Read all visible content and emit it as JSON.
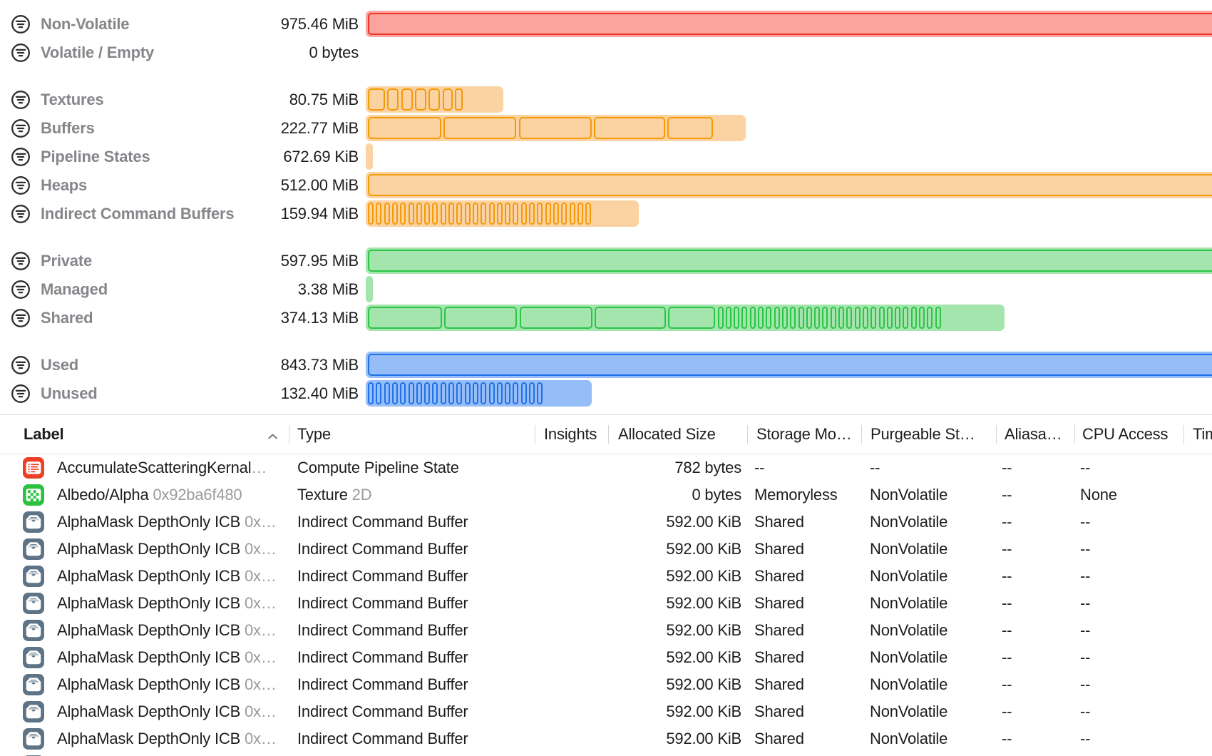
{
  "colors": {
    "red": {
      "stroke": "#ee342b",
      "fill": "#fba39d"
    },
    "orange": {
      "stroke": "#f59a06",
      "fill": "#fbd2a2"
    },
    "green": {
      "stroke": "#2cc447",
      "fill": "#a4e5ae"
    },
    "blue": {
      "stroke": "#1f70e9",
      "fill": "#95bdf8"
    },
    "label_gray": "#86868b",
    "text_primary": "#1d1d1f",
    "text_secondary": "#9b9ba0",
    "icon_red_bg": "#ee3e26",
    "icon_green_bg": "#2ac23f",
    "icon_slate_bg": "#5e7486"
  },
  "memory_overview": {
    "unit_note": "sizes as displayed",
    "groups": [
      {
        "rows": [
          {
            "id": "non-volatile",
            "label": "Non-Volatile",
            "value": "975.46 MiB",
            "color": "red",
            "track_w": 2336,
            "segments": [
              2330
            ]
          },
          {
            "id": "volatile-empty",
            "label": "Volatile / Empty",
            "value": "0 bytes",
            "color": "none",
            "track_w": 0,
            "segments": []
          }
        ]
      },
      {
        "rows": [
          {
            "id": "textures",
            "label": "Textures",
            "value": "80.75 MiB",
            "color": "orange",
            "track_w": 193,
            "segments": [
              24,
              16,
              16,
              16,
              16,
              14,
              11
            ]
          },
          {
            "id": "buffers",
            "label": "Buffers",
            "value": "222.77 MiB",
            "color": "orange",
            "track_w": 533,
            "segments": [
              103,
              102,
              102,
              100,
              64
            ]
          },
          {
            "id": "pipeline-states",
            "label": "Pipeline States",
            "value": "672.69 KiB",
            "color": "orange",
            "track_w": 10,
            "segments": []
          },
          {
            "id": "heaps",
            "label": "Heaps",
            "value": "512.00 MiB",
            "color": "orange",
            "track_w": 1226,
            "segments": [
              1220
            ]
          },
          {
            "id": "indirect-command-buffers",
            "label": "Indirect Command Buffers",
            "value": "159.94 MiB",
            "color": "orange",
            "track_w": 383,
            "segments": [
              8,
              8,
              8,
              8,
              8,
              8,
              8,
              8,
              8,
              8,
              8,
              8,
              8,
              8,
              8,
              8,
              8,
              8,
              8,
              8,
              8,
              8,
              8,
              8,
              8,
              8,
              8,
              8
            ]
          }
        ]
      },
      {
        "rows": [
          {
            "id": "private",
            "label": "Private",
            "value": "597.95 MiB",
            "color": "green",
            "track_w": 1432,
            "segments": [
              1426
            ]
          },
          {
            "id": "managed",
            "label": "Managed",
            "value": "3.38 MiB",
            "color": "green",
            "track_w": 10,
            "segments": []
          },
          {
            "id": "shared",
            "label": "Shared",
            "value": "374.13 MiB",
            "color": "green",
            "track_w": 896,
            "segments": [
              104,
              102,
              102,
              100,
              66,
              8,
              8,
              8,
              8,
              8,
              8,
              8,
              8,
              8,
              8,
              8,
              8,
              8,
              8,
              8,
              8,
              8,
              8,
              8,
              8,
              8,
              8,
              8,
              8,
              8,
              8,
              8,
              8
            ]
          }
        ]
      },
      {
        "rows": [
          {
            "id": "used",
            "label": "Used",
            "value": "843.73 MiB",
            "color": "blue",
            "track_w": 2021,
            "segments": [
              2015
            ]
          },
          {
            "id": "unused",
            "label": "Unused",
            "value": "132.40 MiB",
            "color": "blue",
            "track_w": 317,
            "segments": [
              8,
              8,
              8,
              8,
              8,
              8,
              8,
              8,
              8,
              8,
              8,
              8,
              8,
              8,
              8,
              8,
              8,
              8,
              8,
              8,
              8,
              8
            ]
          }
        ]
      }
    ]
  },
  "table": {
    "columns": [
      {
        "id": "label",
        "label": "Label",
        "sorted": true
      },
      {
        "id": "type",
        "label": "Type"
      },
      {
        "id": "insights",
        "label": "Insights"
      },
      {
        "id": "allocated-size",
        "label": "Allocated Size"
      },
      {
        "id": "storage-mode",
        "label": "Storage Mo…"
      },
      {
        "id": "purgeable-state",
        "label": "Purgeable St…"
      },
      {
        "id": "aliasable",
        "label": "Aliasa…"
      },
      {
        "id": "cpu-access",
        "label": "CPU Access"
      },
      {
        "id": "time",
        "label": "Tim"
      }
    ],
    "rows": [
      {
        "icon": "pipeline",
        "label": "AccumulateScatteringKernal",
        "label_suffix": "…",
        "type": "Compute Pipeline State",
        "type_suffix": "",
        "insights": "",
        "allocated": "782 bytes",
        "storage": "--",
        "purgeable": "--",
        "aliasable": "--",
        "cpu": "--"
      },
      {
        "icon": "texture",
        "label": "Albedo/Alpha",
        "label_suffix": "0x92ba6f480",
        "type": "Texture",
        "type_suffix": "2D",
        "insights": "",
        "allocated": "0 bytes",
        "storage": "Memoryless",
        "purgeable": "NonVolatile",
        "aliasable": "--",
        "cpu": "None"
      },
      {
        "icon": "icb",
        "label": "AlphaMask DepthOnly ICB",
        "label_suffix": "0x…",
        "type": "Indirect Command Buffer",
        "type_suffix": "",
        "insights": "",
        "allocated": "592.00 KiB",
        "storage": "Shared",
        "purgeable": "NonVolatile",
        "aliasable": "--",
        "cpu": "--"
      },
      {
        "icon": "icb",
        "label": "AlphaMask DepthOnly ICB",
        "label_suffix": "0x…",
        "type": "Indirect Command Buffer",
        "type_suffix": "",
        "insights": "",
        "allocated": "592.00 KiB",
        "storage": "Shared",
        "purgeable": "NonVolatile",
        "aliasable": "--",
        "cpu": "--"
      },
      {
        "icon": "icb",
        "label": "AlphaMask DepthOnly ICB",
        "label_suffix": "0x…",
        "type": "Indirect Command Buffer",
        "type_suffix": "",
        "insights": "",
        "allocated": "592.00 KiB",
        "storage": "Shared",
        "purgeable": "NonVolatile",
        "aliasable": "--",
        "cpu": "--"
      },
      {
        "icon": "icb",
        "label": "AlphaMask DepthOnly ICB",
        "label_suffix": "0x…",
        "type": "Indirect Command Buffer",
        "type_suffix": "",
        "insights": "",
        "allocated": "592.00 KiB",
        "storage": "Shared",
        "purgeable": "NonVolatile",
        "aliasable": "--",
        "cpu": "--"
      },
      {
        "icon": "icb",
        "label": "AlphaMask DepthOnly ICB",
        "label_suffix": "0x…",
        "type": "Indirect Command Buffer",
        "type_suffix": "",
        "insights": "",
        "allocated": "592.00 KiB",
        "storage": "Shared",
        "purgeable": "NonVolatile",
        "aliasable": "--",
        "cpu": "--"
      },
      {
        "icon": "icb",
        "label": "AlphaMask DepthOnly ICB",
        "label_suffix": "0x…",
        "type": "Indirect Command Buffer",
        "type_suffix": "",
        "insights": "",
        "allocated": "592.00 KiB",
        "storage": "Shared",
        "purgeable": "NonVolatile",
        "aliasable": "--",
        "cpu": "--"
      },
      {
        "icon": "icb",
        "label": "AlphaMask DepthOnly ICB",
        "label_suffix": "0x…",
        "type": "Indirect Command Buffer",
        "type_suffix": "",
        "insights": "",
        "allocated": "592.00 KiB",
        "storage": "Shared",
        "purgeable": "NonVolatile",
        "aliasable": "--",
        "cpu": "--"
      },
      {
        "icon": "icb",
        "label": "AlphaMask DepthOnly ICB",
        "label_suffix": "0x…",
        "type": "Indirect Command Buffer",
        "type_suffix": "",
        "insights": "",
        "allocated": "592.00 KiB",
        "storage": "Shared",
        "purgeable": "NonVolatile",
        "aliasable": "--",
        "cpu": "--"
      },
      {
        "icon": "icb",
        "label": "AlphaMask DepthOnly ICB",
        "label_suffix": "0x…",
        "type": "Indirect Command Buffer",
        "type_suffix": "",
        "insights": "",
        "allocated": "592.00 KiB",
        "storage": "Shared",
        "purgeable": "NonVolatile",
        "aliasable": "--",
        "cpu": "--"
      },
      {
        "icon": "icb",
        "label": "",
        "label_suffix": "",
        "type": "",
        "type_suffix": "",
        "insights": "",
        "allocated": "",
        "storage": "",
        "purgeable": "",
        "aliasable": "",
        "cpu": "",
        "partial": true
      }
    ]
  }
}
